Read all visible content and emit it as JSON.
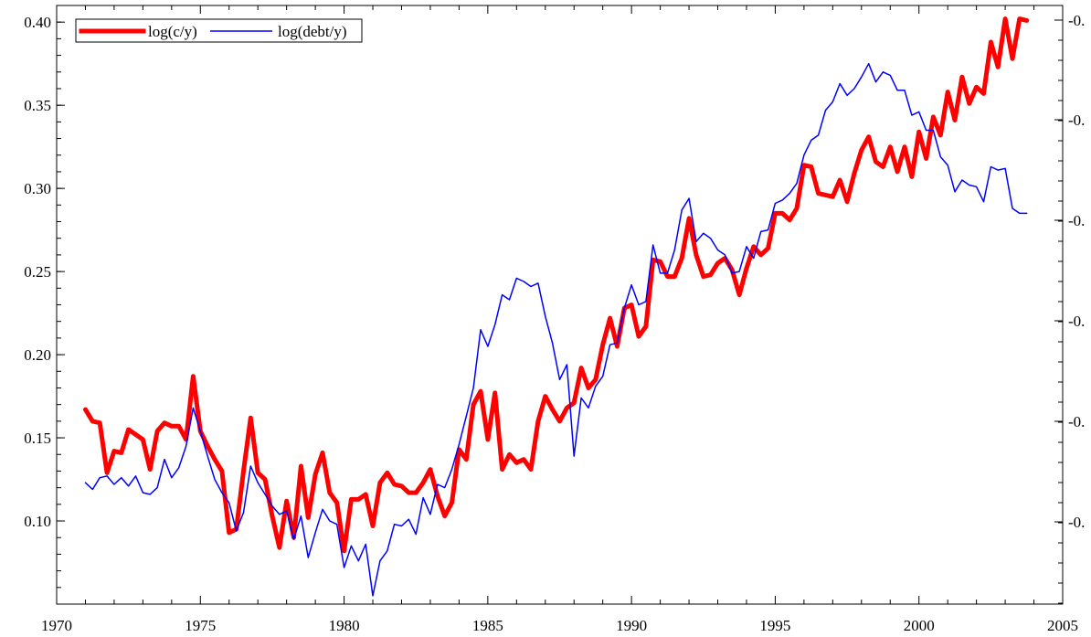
{
  "chart_data": {
    "type": "line",
    "xlim": [
      1970,
      2005
    ],
    "ylim": [
      0.05,
      0.41
    ],
    "xticks": [
      1970,
      1975,
      1980,
      1985,
      1990,
      1995,
      2000,
      2005
    ],
    "yticks": [
      0.1,
      0.15,
      0.2,
      0.25,
      0.3,
      0.35,
      0.4
    ],
    "xtick_labels": [
      "1970",
      "1975",
      "1980",
      "1985",
      "1990",
      "1995",
      "2000",
      "2005"
    ],
    "ytick_labels": [
      "0.10",
      "0.15",
      "0.20",
      "0.25",
      "0.30",
      "0.35",
      "0.40"
    ],
    "right_ytick_labels": [
      "-0.",
      "-0.",
      "-0.",
      "-0.",
      "-0.",
      "-0."
    ],
    "legend_position": "top-left",
    "grid": false,
    "colors": {
      "series_1": "#ff0000",
      "series_2": "#0000ff"
    },
    "series": [
      {
        "name": "log(c/y)",
        "color": "#ff0000",
        "x": [
          1971,
          1971.25,
          1971.5,
          1971.75,
          1972,
          1972.25,
          1972.5,
          1972.75,
          1973,
          1973.25,
          1973.5,
          1973.75,
          1974,
          1974.25,
          1974.5,
          1974.75,
          1975,
          1975.25,
          1975.5,
          1975.75,
          1976,
          1976.25,
          1976.5,
          1976.75,
          1977,
          1977.25,
          1977.5,
          1977.75,
          1978,
          1978.25,
          1978.5,
          1978.75,
          1979,
          1979.25,
          1979.5,
          1979.75,
          1980,
          1980.25,
          1980.5,
          1980.75,
          1981,
          1981.25,
          1981.5,
          1981.75,
          1982,
          1982.25,
          1982.5,
          1982.75,
          1983,
          1983.25,
          1983.5,
          1983.75,
          1984,
          1984.25,
          1984.5,
          1984.75,
          1985,
          1985.25,
          1985.5,
          1985.75,
          1986,
          1986.25,
          1986.5,
          1986.75,
          1987,
          1987.25,
          1987.5,
          1987.75,
          1988,
          1988.25,
          1988.5,
          1988.75,
          1989,
          1989.25,
          1989.5,
          1989.75,
          1990,
          1990.25,
          1990.5,
          1990.75,
          1991,
          1991.25,
          1991.5,
          1991.75,
          1992,
          1992.25,
          1992.5,
          1992.75,
          1993,
          1993.25,
          1993.5,
          1993.75,
          1994,
          1994.25,
          1994.5,
          1994.75,
          1995,
          1995.25,
          1995.5,
          1995.75,
          1996,
          1996.25,
          1996.5,
          1996.75,
          1997,
          1997.25,
          1997.5,
          1997.75,
          1998,
          1998.25,
          1998.5,
          1998.75,
          1999,
          1999.25,
          1999.5,
          1999.75,
          2000,
          2000.25,
          2000.5,
          2000.75,
          2001,
          2001.25,
          2001.5,
          2001.75,
          2002,
          2002.25,
          2002.5,
          2002.75,
          2003,
          2003.25,
          2003.5,
          2003.75
        ],
        "values": [
          0.167,
          0.16,
          0.159,
          0.129,
          0.142,
          0.141,
          0.155,
          0.152,
          0.149,
          0.131,
          0.154,
          0.159,
          0.157,
          0.157,
          0.149,
          0.187,
          0.154,
          0.145,
          0.137,
          0.13,
          0.093,
          0.095,
          0.13,
          0.162,
          0.129,
          0.125,
          0.103,
          0.084,
          0.112,
          0.09,
          0.133,
          0.102,
          0.128,
          0.141,
          0.117,
          0.111,
          0.082,
          0.113,
          0.113,
          0.116,
          0.097,
          0.123,
          0.129,
          0.122,
          0.121,
          0.117,
          0.117,
          0.123,
          0.131,
          0.115,
          0.103,
          0.111,
          0.143,
          0.137,
          0.17,
          0.178,
          0.149,
          0.177,
          0.131,
          0.14,
          0.135,
          0.137,
          0.131,
          0.16,
          0.175,
          0.167,
          0.16,
          0.168,
          0.171,
          0.192,
          0.18,
          0.185,
          0.206,
          0.222,
          0.205,
          0.228,
          0.23,
          0.211,
          0.217,
          0.257,
          0.256,
          0.247,
          0.247,
          0.258,
          0.282,
          0.26,
          0.247,
          0.248,
          0.255,
          0.258,
          0.251,
          0.236,
          0.252,
          0.265,
          0.26,
          0.264,
          0.285,
          0.285,
          0.281,
          0.288,
          0.314,
          0.313,
          0.297,
          0.296,
          0.295,
          0.305,
          0.292,
          0.309,
          0.323,
          0.331,
          0.316,
          0.313,
          0.325,
          0.31,
          0.325,
          0.307,
          0.334,
          0.318,
          0.343,
          0.332,
          0.358,
          0.341,
          0.367,
          0.351,
          0.361,
          0.357,
          0.388,
          0.373,
          0.402,
          0.378,
          0.402,
          0.401
        ]
      },
      {
        "name": "log(debt/y)",
        "color": "#0000ff",
        "x": [
          1971,
          1971.25,
          1971.5,
          1971.75,
          1972,
          1972.25,
          1972.5,
          1972.75,
          1973,
          1973.25,
          1973.5,
          1973.75,
          1974,
          1974.25,
          1974.5,
          1974.75,
          1975,
          1975.25,
          1975.5,
          1975.75,
          1976,
          1976.25,
          1976.5,
          1976.75,
          1977,
          1977.25,
          1977.5,
          1977.75,
          1978,
          1978.25,
          1978.5,
          1978.75,
          1979,
          1979.25,
          1979.5,
          1979.75,
          1980,
          1980.25,
          1980.5,
          1980.75,
          1981,
          1981.25,
          1981.5,
          1981.75,
          1982,
          1982.25,
          1982.5,
          1982.75,
          1983,
          1983.25,
          1983.5,
          1983.75,
          1984,
          1984.25,
          1984.5,
          1984.75,
          1985,
          1985.25,
          1985.5,
          1985.75,
          1986,
          1986.25,
          1986.5,
          1986.75,
          1987,
          1987.25,
          1987.5,
          1987.75,
          1988,
          1988.25,
          1988.5,
          1988.75,
          1989,
          1989.25,
          1989.5,
          1989.75,
          1990,
          1990.25,
          1990.5,
          1990.75,
          1991,
          1991.25,
          1991.5,
          1991.75,
          1992,
          1992.25,
          1992.5,
          1992.75,
          1993,
          1993.25,
          1993.5,
          1993.75,
          1994,
          1994.25,
          1994.5,
          1994.75,
          1995,
          1995.25,
          1995.5,
          1995.75,
          1996,
          1996.25,
          1996.5,
          1996.75,
          1997,
          1997.25,
          1997.5,
          1997.75,
          1998,
          1998.25,
          1998.5,
          1998.75,
          1999,
          1999.25,
          1999.5,
          1999.75,
          2000,
          2000.25,
          2000.5,
          2000.75,
          2001,
          2001.25,
          2001.5,
          2001.75,
          2002,
          2002.25,
          2002.5,
          2002.75,
          2003,
          2003.25,
          2003.5,
          2003.75
        ],
        "values": [
          0.123,
          0.119,
          0.126,
          0.127,
          0.122,
          0.126,
          0.121,
          0.127,
          0.117,
          0.116,
          0.12,
          0.137,
          0.126,
          0.132,
          0.145,
          0.168,
          0.154,
          0.139,
          0.125,
          0.117,
          0.111,
          0.094,
          0.105,
          0.133,
          0.123,
          0.116,
          0.109,
          0.104,
          0.106,
          0.089,
          0.103,
          0.078,
          0.093,
          0.107,
          0.1,
          0.098,
          0.072,
          0.085,
          0.076,
          0.086,
          0.055,
          0.076,
          0.082,
          0.098,
          0.097,
          0.101,
          0.092,
          0.114,
          0.104,
          0.122,
          0.12,
          0.131,
          0.146,
          0.163,
          0.18,
          0.215,
          0.205,
          0.218,
          0.236,
          0.233,
          0.246,
          0.244,
          0.241,
          0.243,
          0.223,
          0.207,
          0.185,
          0.194,
          0.139,
          0.174,
          0.168,
          0.181,
          0.187,
          0.206,
          0.207,
          0.228,
          0.242,
          0.23,
          0.232,
          0.266,
          0.249,
          0.249,
          0.263,
          0.287,
          0.294,
          0.268,
          0.273,
          0.27,
          0.263,
          0.26,
          0.249,
          0.25,
          0.265,
          0.258,
          0.274,
          0.275,
          0.291,
          0.293,
          0.297,
          0.303,
          0.32,
          0.329,
          0.332,
          0.347,
          0.352,
          0.363,
          0.356,
          0.36,
          0.367,
          0.375,
          0.364,
          0.37,
          0.368,
          0.359,
          0.359,
          0.344,
          0.346,
          0.335,
          0.335,
          0.319,
          0.314,
          0.298,
          0.305,
          0.302,
          0.301,
          0.292,
          0.313,
          0.311,
          0.312,
          0.288,
          0.285,
          0.285
        ]
      }
    ]
  }
}
